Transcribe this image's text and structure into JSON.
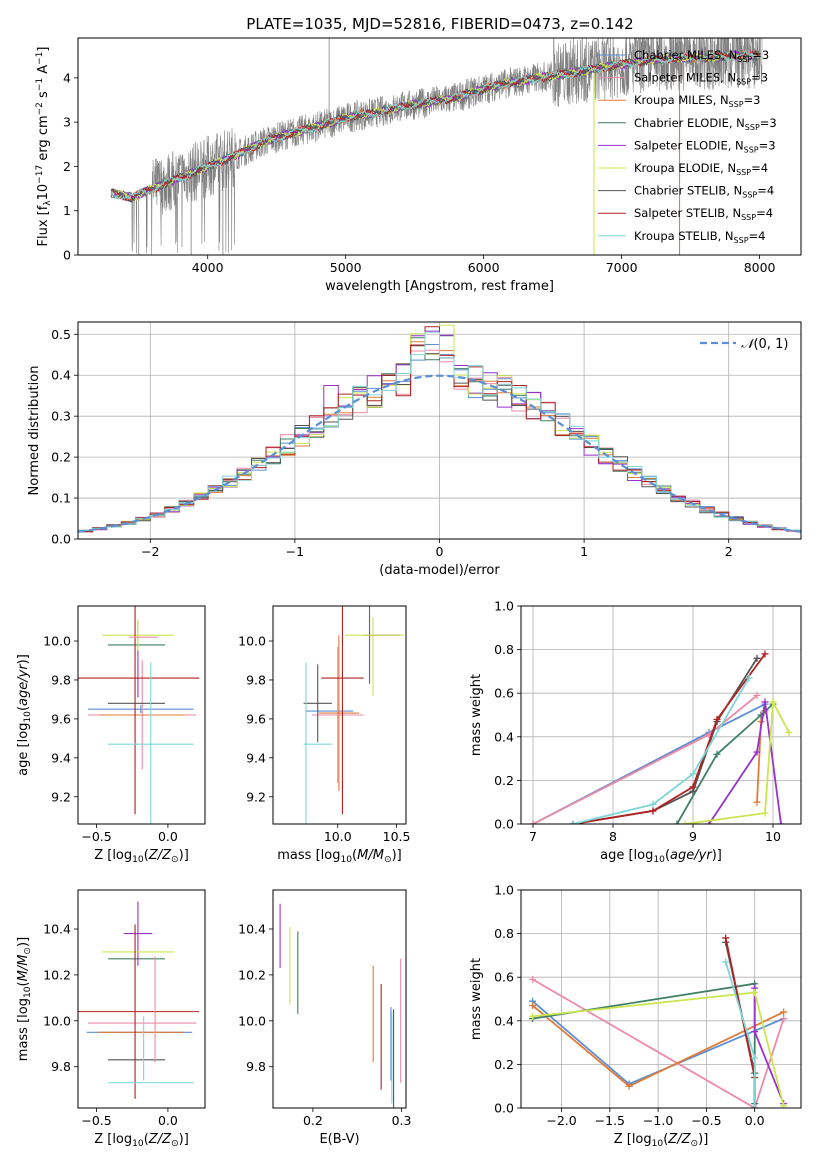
{
  "figure_title": "PLATE=1035, MJD=52816, FIBERID=0473, z=0.142",
  "colors": {
    "Chabrier MILES": "#5b8fd6",
    "Salpeter MILES": "#ef8aa6",
    "Kroupa MILES": "#e07b39",
    "Chabrier ELODIE": "#3f7f63",
    "Salpeter ELODIE": "#9932cc",
    "Kroupa ELODIE": "#cbe54f",
    "Chabrier STELIB": "#555555",
    "Salpeter STELIB": "#b22222",
    "Kroupa STELIB": "#7fd6d6",
    "data": "#808080",
    "gauss": "#5b8fd6"
  },
  "chart_data": [
    {
      "id": "spectrum",
      "type": "line",
      "xlabel": "wavelength [Angstrom, rest frame]",
      "ylabel_parts": [
        "Flux [f",
        "λ",
        "10",
        "−17",
        " erg cm",
        "−2",
        " s",
        "−1",
        " A",
        "−1",
        "]"
      ],
      "xlim": [
        3060,
        8300
      ],
      "ylim": [
        0,
        4.9
      ],
      "xticks": [
        4000,
        5000,
        6000,
        7000,
        8000
      ],
      "yticks": [
        0,
        1,
        2,
        3,
        4
      ],
      "continuum": [
        [
          3300,
          1.4
        ],
        [
          3450,
          1.3
        ],
        [
          3600,
          1.5
        ],
        [
          3800,
          1.75
        ],
        [
          4000,
          2.0
        ],
        [
          4200,
          2.25
        ],
        [
          4400,
          2.55
        ],
        [
          4600,
          2.75
        ],
        [
          4800,
          2.9
        ],
        [
          5000,
          3.1
        ],
        [
          5200,
          3.2
        ],
        [
          5400,
          3.35
        ],
        [
          5600,
          3.45
        ],
        [
          5800,
          3.55
        ],
        [
          6000,
          3.75
        ],
        [
          6200,
          3.9
        ],
        [
          6400,
          4.0
        ],
        [
          6600,
          4.1
        ],
        [
          6800,
          4.2
        ],
        [
          7000,
          4.3
        ],
        [
          7200,
          4.4
        ],
        [
          7400,
          4.45
        ],
        [
          7600,
          4.45
        ],
        [
          7800,
          4.5
        ],
        [
          8000,
          4.5
        ]
      ],
      "legend": [
        {
          "base": "Chabrier MILES, N",
          "sub": "SSP",
          "tail": "=3"
        },
        {
          "base": "Salpeter MILES, N",
          "sub": "SSP",
          "tail": "=3"
        },
        {
          "base": "Kroupa MILES, N",
          "sub": "SSP",
          "tail": "=3"
        },
        {
          "base": "Chabrier ELODIE, N",
          "sub": "SSP",
          "tail": "=3"
        },
        {
          "base": "Salpeter ELODIE, N",
          "sub": "SSP",
          "tail": "=3"
        },
        {
          "base": "Kroupa ELODIE, N",
          "sub": "SSP",
          "tail": "=4"
        },
        {
          "base": "Chabrier STELIB, N",
          "sub": "SSP",
          "tail": "=4"
        },
        {
          "base": "Salpeter STELIB, N",
          "sub": "SSP",
          "tail": "=4"
        },
        {
          "base": "Kroupa STELIB, N",
          "sub": "SSP",
          "tail": "=4"
        }
      ]
    },
    {
      "id": "residuals",
      "type": "histogram",
      "xlabel": "(data-model)/error",
      "ylabel": "Normed distribution",
      "xlim": [
        -2.5,
        2.5
      ],
      "ylim": [
        0,
        0.53
      ],
      "xticks": [
        -2,
        -1,
        0,
        1,
        2
      ],
      "yticks": [
        0.0,
        0.1,
        0.2,
        0.3,
        0.4,
        0.5
      ],
      "legend": {
        "base": "𝒩",
        "tail": "(0, 1)"
      },
      "binwidth": 0.1
    },
    {
      "id": "age_vs_Z",
      "type": "errorbar",
      "xlabel": {
        "base": "Z [log",
        "sub": "10",
        "mid": "(",
        "italic": "Z/Z",
        "sun": "⊙",
        "tail": ")]"
      },
      "ylabel": {
        "base": "age  [log",
        "sub": "10",
        "mid": "(",
        "italic": "age/yr",
        "tail": ")]"
      },
      "xlim": [
        -0.63,
        0.26
      ],
      "ylim": [
        9.06,
        10.18
      ],
      "xticks": [
        -0.5,
        0.0
      ],
      "yticks": [
        9.2,
        9.4,
        9.6,
        9.8,
        10.0
      ],
      "xtick_labels": [
        "−0.5",
        "0.0"
      ],
      "ytick_labels": [
        "9.2",
        "9.4",
        "9.6",
        "9.8",
        "10.0"
      ],
      "points": [
        {
          "model": "Chabrier MILES",
          "x": -0.19,
          "xerr": 0.37,
          "y": 9.65,
          "yerr": 0.02
        },
        {
          "model": "Salpeter MILES",
          "x": -0.18,
          "xerr": 0.38,
          "y": 9.62,
          "yerr": 0.28
        },
        {
          "model": "Kroupa MILES",
          "x": -0.18,
          "xerr": 0.3,
          "y": 9.62,
          "yerr": 0.0
        },
        {
          "model": "Chabrier ELODIE",
          "x": -0.22,
          "xerr": 0.2,
          "y": 9.98,
          "yerr": 0.0
        },
        {
          "model": "Salpeter ELODIE",
          "x": -0.21,
          "xerr": 0.0,
          "y": 9.91,
          "yerr": 0.2
        },
        {
          "model": "Kroupa ELODIE",
          "x": -0.21,
          "xerr": 0.25,
          "y": 10.03,
          "yerr": 0.08
        },
        {
          "model": "Chabrier STELIB",
          "x": -0.22,
          "xerr": 0.2,
          "y": 9.68,
          "yerr": 0.0
        },
        {
          "model": "Salpeter STELIB",
          "x": -0.23,
          "xerr": 0.45,
          "y": 9.81,
          "yerr": 0.7
        },
        {
          "model": "Kroupa STELIB",
          "x": -0.12,
          "xerr": 0.3,
          "y": 9.47,
          "yerr": 0.42
        },
        {
          "model": "Kroupa MILES",
          "x": -0.25,
          "xerr": 0.0,
          "y": 10.03,
          "yerr": 0.0
        },
        {
          "model": "Salpeter MILES",
          "x": -0.17,
          "xerr": 0.1,
          "y": 10.02,
          "yerr": 0.0
        }
      ]
    },
    {
      "id": "age_vs_mass",
      "type": "errorbar",
      "xlabel": {
        "base": "mass [log",
        "sub": "10",
        "mid": "(",
        "italic": "M/M",
        "sun": "⊙",
        "tail": ")]"
      },
      "xlim": [
        9.45,
        10.58
      ],
      "ylim": [
        9.06,
        10.18
      ],
      "xticks": [
        10.0,
        10.5
      ],
      "yticks": [
        9.2,
        9.4,
        9.6,
        9.8,
        10.0
      ],
      "xtick_labels": [
        "10.0",
        "10.5"
      ],
      "ytick_labels": [
        "9.2",
        "9.4",
        "9.6",
        "9.8",
        "10.0"
      ],
      "points": [
        {
          "model": "Chabrier MILES",
          "x": 9.93,
          "xerr": 0.2,
          "y": 9.64,
          "yerr": 0.0
        },
        {
          "model": "Salpeter MILES",
          "x": 10.0,
          "xerr": 0.22,
          "y": 9.62,
          "yerr": 0.35
        },
        {
          "model": "Kroupa MILES",
          "x": 10.01,
          "xerr": 0.17,
          "y": 9.63,
          "yerr": 0.4
        },
        {
          "model": "Chabrier ELODIE",
          "x": 10.27,
          "xerr": 0.0,
          "y": 9.98,
          "yerr": 0.2
        },
        {
          "model": "Salpeter ELODIE",
          "x": 10.38,
          "xerr": 0.15,
          "y": 10.03,
          "yerr": 0.0
        },
        {
          "model": "Kroupa ELODIE",
          "x": 10.3,
          "xerr": 0.0,
          "y": 9.92,
          "yerr": 0.2
        },
        {
          "model": "Chabrier STELIB",
          "x": 9.83,
          "xerr": 0.12,
          "y": 9.68,
          "yerr": 0.2
        },
        {
          "model": "Salpeter STELIB",
          "x": 10.04,
          "xerr": 0.18,
          "y": 9.81,
          "yerr": 0.7
        },
        {
          "model": "Kroupa STELIB",
          "x": 9.73,
          "xerr": 0.0,
          "y": 9.47,
          "yerr": 0.42
        },
        {
          "model": "Kroupa STELIB",
          "x": 9.83,
          "xerr": 0.12,
          "y": 9.47,
          "yerr": 0.0
        },
        {
          "model": "Kroupa ELODIE",
          "x": 10.31,
          "xerr": 0.25,
          "y": 10.03,
          "yerr": 0.0
        }
      ]
    },
    {
      "id": "weight_vs_age",
      "type": "line",
      "xlabel": {
        "base": "age  [log",
        "sub": "10",
        "mid": "(",
        "italic": "age/yr",
        "tail": ")]"
      },
      "ylabel": "mass weight",
      "xlim": [
        6.85,
        10.35
      ],
      "ylim": [
        0,
        1.0
      ],
      "xticks": [
        7,
        8,
        9,
        10
      ],
      "yticks": [
        0.0,
        0.2,
        0.4,
        0.6,
        0.8,
        1.0
      ],
      "xtick_labels": [
        "7",
        "8",
        "9",
        "10"
      ],
      "ytick_labels": [
        "0.0",
        "0.2",
        "0.4",
        "0.6",
        "0.8",
        "1.0"
      ],
      "series": [
        {
          "model": "Chabrier MILES",
          "x": [
            7.0,
            9.2,
            9.9
          ],
          "y": [
            0.0,
            0.42,
            0.55
          ]
        },
        {
          "model": "Salpeter MILES",
          "x": [
            7.0,
            9.2,
            9.8
          ],
          "y": [
            0.0,
            0.41,
            0.59
          ]
        },
        {
          "model": "Kroupa MILES",
          "x": [
            9.8,
            9.85,
            9.9
          ],
          "y": [
            0.1,
            0.47,
            0.52
          ]
        },
        {
          "model": "Chabrier ELODIE",
          "x": [
            8.8,
            9.3,
            9.85,
            10.0
          ],
          "y": [
            0.0,
            0.32,
            0.5,
            0.55
          ]
        },
        {
          "model": "Salpeter ELODIE",
          "x": [
            9.2,
            9.8,
            9.9,
            10.1
          ],
          "y": [
            0.0,
            0.33,
            0.56,
            0.0
          ]
        },
        {
          "model": "Kroupa ELODIE",
          "x": [
            8.9,
            9.9,
            10.0,
            10.2
          ],
          "y": [
            0.0,
            0.05,
            0.56,
            0.42
          ]
        },
        {
          "model": "Chabrier STELIB",
          "x": [
            7.5,
            8.5,
            9.0,
            9.3,
            9.8
          ],
          "y": [
            0.0,
            0.06,
            0.15,
            0.47,
            0.76
          ]
        },
        {
          "model": "Salpeter STELIB",
          "x": [
            7.5,
            8.5,
            9.0,
            9.3,
            9.9
          ],
          "y": [
            0.0,
            0.06,
            0.17,
            0.48,
            0.78
          ]
        },
        {
          "model": "Kroupa STELIB",
          "x": [
            7.5,
            8.5,
            9.0,
            9.7
          ],
          "y": [
            0.0,
            0.09,
            0.23,
            0.67
          ]
        }
      ]
    },
    {
      "id": "mass_vs_Z",
      "type": "errorbar",
      "xlabel": {
        "base": "Z [log",
        "sub": "10",
        "mid": "(",
        "italic": "Z/Z",
        "sun": "⊙",
        "tail": ")]"
      },
      "ylabel": {
        "base": "mass [log",
        "sub": "10",
        "mid": "(",
        "italic": "M/M",
        "sun": "⊙",
        "tail": ")]"
      },
      "xlim": [
        -0.63,
        0.26
      ],
      "ylim": [
        9.62,
        10.57
      ],
      "xticks": [
        -0.5,
        0.0
      ],
      "yticks": [
        9.8,
        10.0,
        10.2,
        10.4
      ],
      "xtick_labels": [
        "−0.5",
        "0.0"
      ],
      "ytick_labels": [
        "9.8",
        "10.0",
        "10.2",
        "10.4"
      ],
      "points": [
        {
          "model": "Chabrier MILES",
          "x": -0.2,
          "xerr": 0.37,
          "y": 9.95,
          "yerr": 0.0
        },
        {
          "model": "Salpeter MILES",
          "x": -0.18,
          "xerr": 0.38,
          "y": 9.99,
          "yerr": 0.0
        },
        {
          "model": "Kroupa MILES",
          "x": -0.19,
          "xerr": 0.3,
          "y": 9.95,
          "yerr": 0.0
        },
        {
          "model": "Chabrier ELODIE",
          "x": -0.22,
          "xerr": 0.2,
          "y": 10.27,
          "yerr": 0.0
        },
        {
          "model": "Salpeter ELODIE",
          "x": -0.21,
          "xerr": 0.1,
          "y": 10.38,
          "yerr": 0.14
        },
        {
          "model": "Kroupa ELODIE",
          "x": -0.21,
          "xerr": 0.25,
          "y": 10.3,
          "yerr": 0.0
        },
        {
          "model": "Chabrier STELIB",
          "x": -0.22,
          "xerr": 0.2,
          "y": 9.83,
          "yerr": 0.0
        },
        {
          "model": "Salpeter STELIB",
          "x": -0.23,
          "xerr": 0.45,
          "y": 10.04,
          "yerr": 0.38
        },
        {
          "model": "Kroupa STELIB",
          "x": -0.12,
          "xerr": 0.3,
          "y": 9.73,
          "yerr": 0.0
        },
        {
          "model": "Salpeter MILES",
          "x": -0.09,
          "xerr": 0.0,
          "y": 10.05,
          "yerr": 0.23
        },
        {
          "model": "Kroupa STELIB",
          "x": -0.17,
          "xerr": 0.0,
          "y": 9.88,
          "yerr": 0.14
        }
      ]
    },
    {
      "id": "mass_vs_EBV",
      "type": "errorbar",
      "xlabel": "E(B-V)",
      "xlim": [
        0.155,
        0.305
      ],
      "ylim": [
        9.62,
        10.57
      ],
      "xticks": [
        0.2,
        0.3
      ],
      "yticks": [
        9.8,
        10.0,
        10.2,
        10.4
      ],
      "xtick_labels": [
        "0.2",
        "0.3"
      ],
      "ytick_labels": [
        "9.8",
        "10.0",
        "10.2",
        "10.4"
      ],
      "points": [
        {
          "model": "Chabrier MILES",
          "x": 0.288,
          "xerr": 0.0,
          "y": 9.9,
          "yerr": 0.16
        },
        {
          "model": "Salpeter MILES",
          "x": 0.299,
          "xerr": 0.0,
          "y": 10.0,
          "yerr": 0.27
        },
        {
          "model": "Kroupa MILES",
          "x": 0.268,
          "xerr": 0.0,
          "y": 10.03,
          "yerr": 0.21
        },
        {
          "model": "Chabrier ELODIE",
          "x": 0.183,
          "xerr": 0.0,
          "y": 10.21,
          "yerr": 0.18
        },
        {
          "model": "Salpeter ELODIE",
          "x": 0.163,
          "xerr": 0.0,
          "y": 10.37,
          "yerr": 0.14
        },
        {
          "model": "Kroupa ELODIE",
          "x": 0.174,
          "xerr": 0.0,
          "y": 10.24,
          "yerr": 0.17
        },
        {
          "model": "Chabrier STELIB",
          "x": 0.291,
          "xerr": 0.0,
          "y": 9.83,
          "yerr": 0.22
        },
        {
          "model": "Salpeter STELIB",
          "x": 0.277,
          "xerr": 0.0,
          "y": 9.93,
          "yerr": 0.23
        },
        {
          "model": "Kroupa STELIB",
          "x": 0.289,
          "xerr": 0.0,
          "y": 9.84,
          "yerr": 0.2
        }
      ]
    },
    {
      "id": "weight_vs_Z",
      "type": "line",
      "xlabel": {
        "base": "Z [log",
        "sub": "10",
        "mid": "(",
        "italic": "Z/Z",
        "sun": "⊙",
        "tail": ")]"
      },
      "ylabel": "mass weight",
      "xlim": [
        -2.42,
        0.48
      ],
      "ylim": [
        0,
        1.0
      ],
      "xticks": [
        -2.0,
        -1.5,
        -1.0,
        -0.5,
        0.0
      ],
      "yticks": [
        0.0,
        0.2,
        0.4,
        0.6,
        0.8,
        1.0
      ],
      "xtick_labels": [
        "−2.0",
        "−1.5",
        "−1.0",
        "−0.5",
        "0.0"
      ],
      "ytick_labels": [
        "0.0",
        "0.2",
        "0.4",
        "0.6",
        "0.8",
        "1.0"
      ],
      "series": [
        {
          "model": "Chabrier MILES",
          "x": [
            -2.3,
            -1.3,
            0.3
          ],
          "y": [
            0.49,
            0.11,
            0.41
          ]
        },
        {
          "model": "Salpeter MILES",
          "x": [
            -2.3,
            0.0,
            0.3
          ],
          "y": [
            0.59,
            0.0,
            0.41
          ]
        },
        {
          "model": "Kroupa MILES",
          "x": [
            -2.3,
            -1.3,
            0.3
          ],
          "y": [
            0.47,
            0.1,
            0.44
          ]
        },
        {
          "model": "Chabrier ELODIE",
          "x": [
            -2.3,
            0.0,
            0.0
          ],
          "y": [
            0.41,
            0.57,
            0.02
          ]
        },
        {
          "model": "Salpeter ELODIE",
          "x": [
            0.0,
            0.0,
            0.3
          ],
          "y": [
            0.55,
            0.35,
            0.02
          ]
        },
        {
          "model": "Kroupa ELODIE",
          "x": [
            -2.3,
            0.0,
            0.3
          ],
          "y": [
            0.42,
            0.53,
            0.01
          ]
        },
        {
          "model": "Chabrier STELIB",
          "x": [
            -0.3,
            0.0,
            0.0
          ],
          "y": [
            0.76,
            0.16,
            0.0
          ]
        },
        {
          "model": "Salpeter STELIB",
          "x": [
            -0.3,
            0.0,
            0.0
          ],
          "y": [
            0.78,
            0.14,
            0.0
          ]
        },
        {
          "model": "Kroupa STELIB",
          "x": [
            -0.3,
            0.0,
            0.0
          ],
          "y": [
            0.67,
            0.23,
            0.0
          ]
        }
      ]
    }
  ]
}
